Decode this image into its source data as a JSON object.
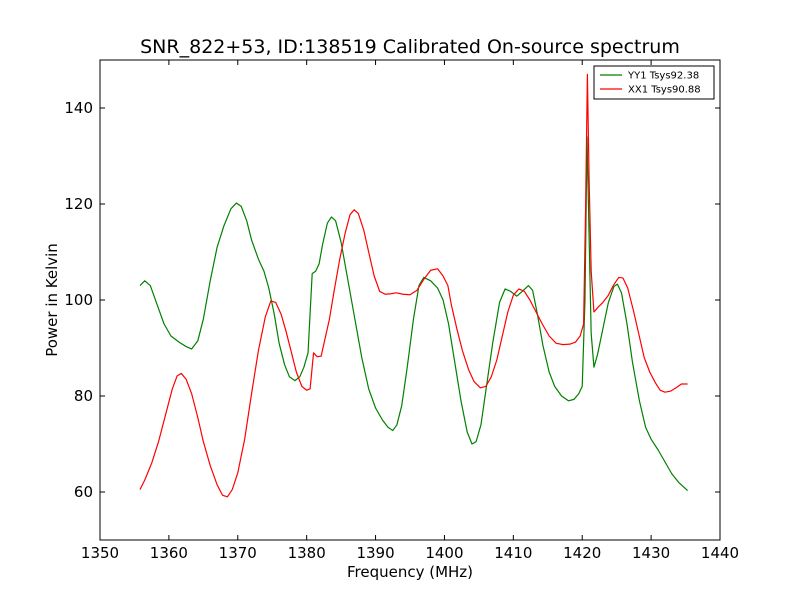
{
  "chart_data": {
    "type": "line",
    "title": "SNR_822+53, ID:138519 Calibrated On-source spectrum",
    "xlabel": "Frequency (MHz)",
    "ylabel": "Power in Kelvin",
    "xlim": [
      1350,
      1440
    ],
    "ylim": [
      50,
      150
    ],
    "xticks": [
      1350,
      1360,
      1370,
      1380,
      1390,
      1400,
      1410,
      1420,
      1430,
      1440
    ],
    "yticks": [
      60,
      80,
      100,
      120,
      140
    ],
    "grid": false,
    "legend_position": "top-right",
    "series": [
      {
        "name": "YY1 Tsys92.38",
        "color": "#008000",
        "points": [
          [
            1355.8,
            103
          ],
          [
            1356.5,
            104
          ],
          [
            1357.3,
            103
          ],
          [
            1358.3,
            99
          ],
          [
            1359.3,
            95
          ],
          [
            1360.3,
            92.5
          ],
          [
            1361.5,
            91.2
          ],
          [
            1362.5,
            90.3
          ],
          [
            1363.3,
            89.8
          ],
          [
            1364.2,
            91.5
          ],
          [
            1365.0,
            96
          ],
          [
            1366.0,
            104
          ],
          [
            1367.0,
            111
          ],
          [
            1368.0,
            115.5
          ],
          [
            1369.0,
            119
          ],
          [
            1369.8,
            120.2
          ],
          [
            1370.5,
            119.5
          ],
          [
            1371.3,
            116.5
          ],
          [
            1372.0,
            112.5
          ],
          [
            1373.0,
            108.5
          ],
          [
            1373.8,
            106
          ],
          [
            1374.5,
            102.5
          ],
          [
            1375.3,
            97
          ],
          [
            1376.0,
            91
          ],
          [
            1376.8,
            86.5
          ],
          [
            1377.5,
            84
          ],
          [
            1378.3,
            83.2
          ],
          [
            1379.0,
            84
          ],
          [
            1379.6,
            86
          ],
          [
            1380.2,
            89
          ],
          [
            1380.8,
            105.5
          ],
          [
            1381.3,
            106
          ],
          [
            1381.8,
            107.5
          ],
          [
            1382.3,
            111.5
          ],
          [
            1383.0,
            116
          ],
          [
            1383.6,
            117.3
          ],
          [
            1384.2,
            116.5
          ],
          [
            1385.0,
            112
          ],
          [
            1386.0,
            104
          ],
          [
            1387.0,
            96
          ],
          [
            1388.0,
            88
          ],
          [
            1389.0,
            81.5
          ],
          [
            1390.0,
            77.5
          ],
          [
            1391.0,
            75
          ],
          [
            1391.8,
            73.5
          ],
          [
            1392.5,
            72.8
          ],
          [
            1393.1,
            74
          ],
          [
            1393.8,
            78
          ],
          [
            1394.6,
            86
          ],
          [
            1395.5,
            96
          ],
          [
            1396.3,
            103
          ],
          [
            1397.0,
            104.7
          ],
          [
            1398.0,
            104
          ],
          [
            1399.0,
            102.5
          ],
          [
            1399.8,
            100
          ],
          [
            1400.6,
            95
          ],
          [
            1401.5,
            87
          ],
          [
            1402.4,
            79
          ],
          [
            1403.3,
            72.5
          ],
          [
            1404.0,
            70
          ],
          [
            1404.6,
            70.5
          ],
          [
            1405.3,
            74
          ],
          [
            1406.0,
            81
          ],
          [
            1407.0,
            91
          ],
          [
            1408.0,
            99.5
          ],
          [
            1408.8,
            102.3
          ],
          [
            1409.6,
            101.8
          ],
          [
            1410.5,
            100.8
          ],
          [
            1411.3,
            101.8
          ],
          [
            1412.2,
            103
          ],
          [
            1412.8,
            102
          ],
          [
            1413.5,
            97
          ],
          [
            1414.3,
            90.5
          ],
          [
            1415.2,
            85
          ],
          [
            1416.0,
            82
          ],
          [
            1417.0,
            80
          ],
          [
            1418.0,
            79
          ],
          [
            1418.8,
            79.3
          ],
          [
            1419.5,
            80.5
          ],
          [
            1420.0,
            82
          ],
          [
            1420.4,
            100
          ],
          [
            1420.7,
            134
          ],
          [
            1421.0,
            113
          ],
          [
            1421.3,
            93
          ],
          [
            1421.7,
            86
          ],
          [
            1422.2,
            88.5
          ],
          [
            1423.0,
            94
          ],
          [
            1423.8,
            99.5
          ],
          [
            1424.6,
            102.8
          ],
          [
            1425.1,
            103.3
          ],
          [
            1425.7,
            101.5
          ],
          [
            1426.5,
            95
          ],
          [
            1427.3,
            87
          ],
          [
            1428.3,
            79
          ],
          [
            1429.2,
            73.5
          ],
          [
            1430.0,
            71
          ],
          [
            1431.0,
            68.8
          ],
          [
            1432.0,
            66.3
          ],
          [
            1433.0,
            63.8
          ],
          [
            1434.0,
            62
          ],
          [
            1435.3,
            60.3
          ]
        ]
      },
      {
        "name": "XX1 Tsys90.88",
        "color": "#ff0000",
        "points": [
          [
            1355.8,
            60.5
          ],
          [
            1356.5,
            62.5
          ],
          [
            1357.5,
            66
          ],
          [
            1358.5,
            70.5
          ],
          [
            1359.5,
            76
          ],
          [
            1360.5,
            81.5
          ],
          [
            1361.2,
            84.2
          ],
          [
            1361.8,
            84.7
          ],
          [
            1362.5,
            83.5
          ],
          [
            1363.3,
            80.5
          ],
          [
            1364.2,
            75.5
          ],
          [
            1365.0,
            70.5
          ],
          [
            1366.0,
            65.5
          ],
          [
            1367.0,
            61.5
          ],
          [
            1367.8,
            59.3
          ],
          [
            1368.5,
            59
          ],
          [
            1369.2,
            60.5
          ],
          [
            1370.0,
            64
          ],
          [
            1371.0,
            71
          ],
          [
            1372.0,
            80.5
          ],
          [
            1373.0,
            89.5
          ],
          [
            1374.0,
            96.5
          ],
          [
            1374.8,
            99.8
          ],
          [
            1375.5,
            99.5
          ],
          [
            1376.3,
            97
          ],
          [
            1377.0,
            93.5
          ],
          [
            1377.8,
            89
          ],
          [
            1378.5,
            85
          ],
          [
            1379.3,
            82
          ],
          [
            1380.0,
            81.2
          ],
          [
            1380.5,
            81.5
          ],
          [
            1381.0,
            89
          ],
          [
            1381.5,
            88.2
          ],
          [
            1382.1,
            88.3
          ],
          [
            1382.6,
            91.5
          ],
          [
            1383.3,
            96
          ],
          [
            1384.0,
            102
          ],
          [
            1384.8,
            108.5
          ],
          [
            1385.6,
            114
          ],
          [
            1386.3,
            117.8
          ],
          [
            1386.9,
            118.8
          ],
          [
            1387.5,
            118
          ],
          [
            1388.3,
            114.5
          ],
          [
            1389.0,
            110
          ],
          [
            1389.8,
            105
          ],
          [
            1390.6,
            101.8
          ],
          [
            1391.4,
            101.2
          ],
          [
            1392.2,
            101.3
          ],
          [
            1393.0,
            101.5
          ],
          [
            1394.0,
            101.2
          ],
          [
            1395.0,
            101.1
          ],
          [
            1396.0,
            102
          ],
          [
            1397.0,
            104.3
          ],
          [
            1398.0,
            106.2
          ],
          [
            1399.0,
            106.5
          ],
          [
            1399.8,
            105
          ],
          [
            1400.5,
            103
          ],
          [
            1401.0,
            99
          ],
          [
            1401.8,
            94
          ],
          [
            1402.6,
            89.5
          ],
          [
            1403.5,
            85.5
          ],
          [
            1404.3,
            83
          ],
          [
            1405.2,
            81.7
          ],
          [
            1406.0,
            82
          ],
          [
            1406.8,
            84
          ],
          [
            1407.6,
            87.5
          ],
          [
            1408.4,
            92.5
          ],
          [
            1409.2,
            97.5
          ],
          [
            1410.0,
            101
          ],
          [
            1410.8,
            102.3
          ],
          [
            1411.6,
            101.8
          ],
          [
            1412.4,
            100
          ],
          [
            1413.3,
            97.5
          ],
          [
            1414.2,
            95
          ],
          [
            1415.2,
            92.5
          ],
          [
            1416.2,
            91
          ],
          [
            1417.2,
            90.7
          ],
          [
            1418.2,
            90.8
          ],
          [
            1419.0,
            91.2
          ],
          [
            1419.7,
            92.5
          ],
          [
            1420.2,
            95
          ],
          [
            1420.5,
            120
          ],
          [
            1420.75,
            147
          ],
          [
            1421.0,
            125
          ],
          [
            1421.3,
            106
          ],
          [
            1421.7,
            97.5
          ],
          [
            1422.3,
            98.5
          ],
          [
            1423.0,
            99.5
          ],
          [
            1423.8,
            101
          ],
          [
            1424.5,
            103
          ],
          [
            1425.3,
            104.7
          ],
          [
            1425.9,
            104.6
          ],
          [
            1426.6,
            102.5
          ],
          [
            1427.4,
            98
          ],
          [
            1428.2,
            93
          ],
          [
            1429.0,
            88
          ],
          [
            1429.8,
            85
          ],
          [
            1430.6,
            82.8
          ],
          [
            1431.3,
            81.2
          ],
          [
            1432.0,
            80.8
          ],
          [
            1432.8,
            81
          ],
          [
            1433.6,
            81.7
          ],
          [
            1434.4,
            82.5
          ],
          [
            1435.3,
            82.5
          ]
        ]
      }
    ]
  }
}
